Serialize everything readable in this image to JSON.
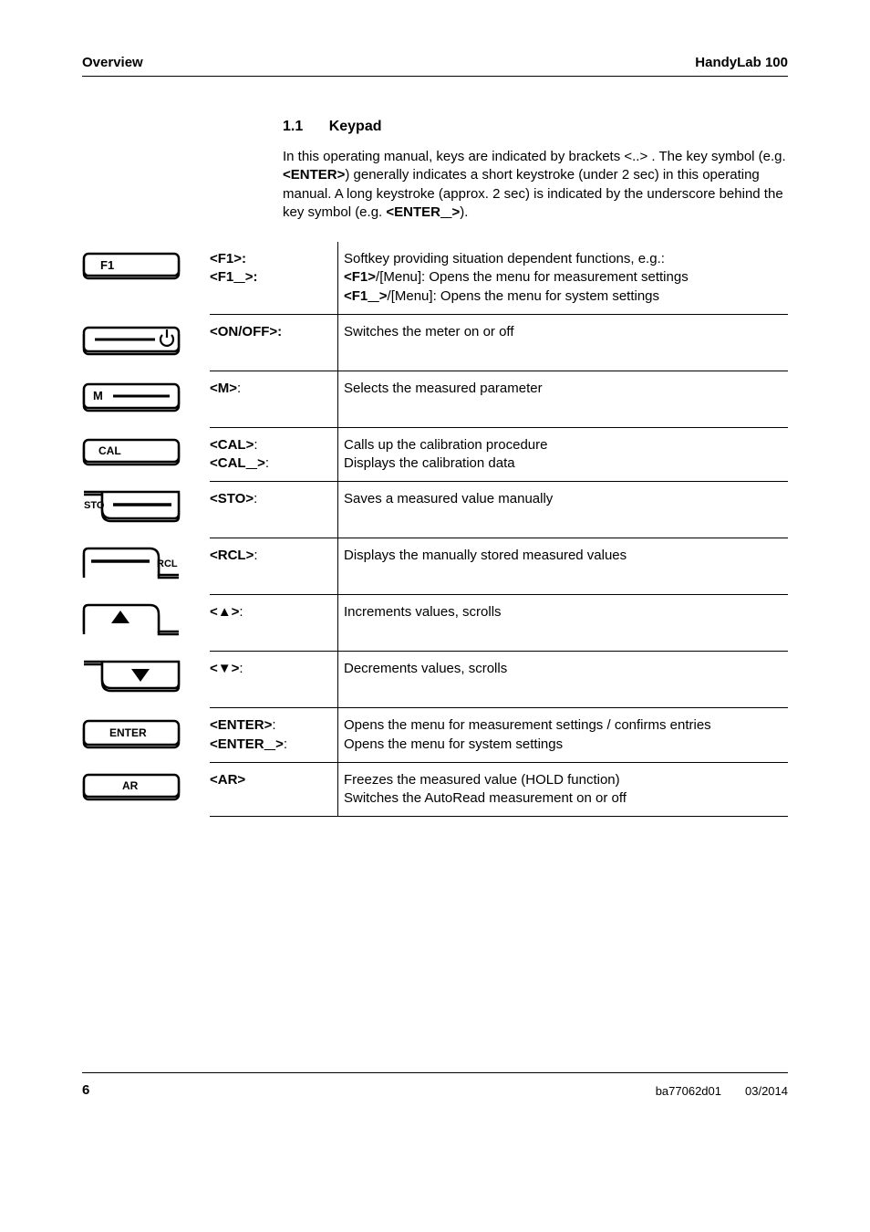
{
  "header": {
    "left": "Overview",
    "right": "HandyLab 100"
  },
  "section": {
    "number": "1.1",
    "title": "Keypad",
    "intro": "In this operating manual, keys are indicated by brackets <..> .\nThe key symbol (e.g. <ENTER>) generally indicates a short keystroke (under 2 sec) in this operating manual. A long keystroke (approx. 2 sec) is indicated by the underscore behind the key symbol (e.g. <ENTER__>)."
  },
  "rows": [
    {
      "key_html": "<b>&lt;F1&gt;:</b><br><b>&lt;F1<u>   </u>&gt;:</b>",
      "desc_html": "Softkey providing situation dependent functions, e.g.:<br><b>&lt;F1&gt;</b>/[Menu]: Opens the menu for measurement settings<br><b>&lt;F1<u>   </u>&gt;</b>/[Menu]: Opens the menu for system settings"
    },
    {
      "key_html": "<b>&lt;ON/OFF&gt;:</b>",
      "desc_html": "Switches the meter on or off"
    },
    {
      "key_html": "<b>&lt;M&gt;</b>:",
      "desc_html": "Selects the measured parameter"
    },
    {
      "key_html": "<b>&lt;CAL&gt;</b>:<br><b>&lt;CAL<u>   </u>&gt;</b>:",
      "desc_html": "Calls up the calibration procedure<br>Displays the calibration data"
    },
    {
      "key_html": "<b>&lt;STO&gt;</b>:",
      "desc_html": "Saves a measured value manually"
    },
    {
      "key_html": "<b>&lt;RCL&gt;</b>:",
      "desc_html": "Displays the manually stored measured values"
    },
    {
      "key_html": "<b>&lt;▲&gt;</b>:",
      "desc_html": "Increments values, scrolls"
    },
    {
      "key_html": "<b>&lt;▼&gt;</b>:",
      "desc_html": "Decrements values, scrolls"
    },
    {
      "key_html": "<b>&lt;ENTER&gt;</b>:<br><b>&lt;ENTER<u>   </u>&gt;</b>:",
      "desc_html": "Opens the menu for measurement settings / confirms entries<br>Opens the menu for system settings"
    },
    {
      "key_html": "<b>&lt;AR&gt;</b>",
      "desc_html": "Freezes the measured value (HOLD function)<br>Switches the AutoRead measurement on or off"
    }
  ],
  "icons": {
    "colors": {
      "stroke": "#000000",
      "fill_none": "none"
    },
    "stroke_width": 2.5
  },
  "footer": {
    "page": "6",
    "code": "ba77062d01",
    "date": "03/2014"
  }
}
